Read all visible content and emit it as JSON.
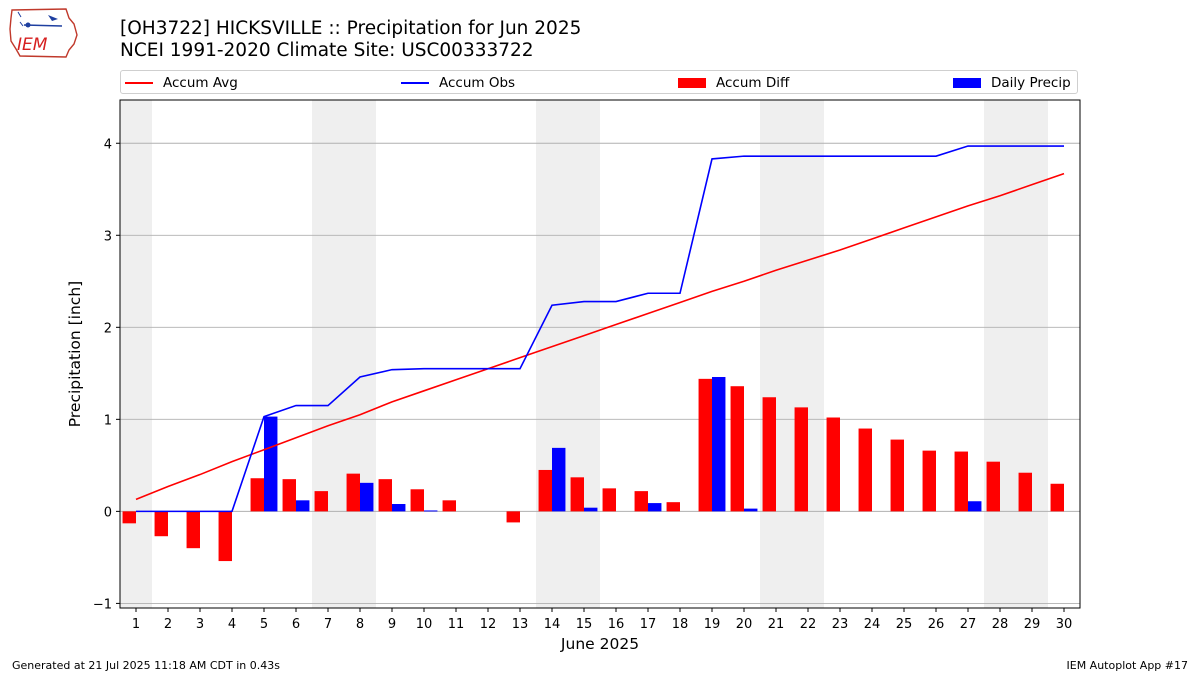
{
  "header": {
    "title_line1": "[OH3722] HICKSVILLE :: Precipitation for Jun 2025",
    "title_line2": "NCEI 1991-2020 Climate Site: USC00333722",
    "logo_text": "IEM"
  },
  "legend": {
    "items": [
      {
        "label": "Accum Avg",
        "kind": "line",
        "color": "#ff0000"
      },
      {
        "label": "Accum Obs",
        "kind": "line",
        "color": "#0000ff"
      },
      {
        "label": "Accum Diff",
        "kind": "bar",
        "color": "#ff0000"
      },
      {
        "label": "Daily Precip",
        "kind": "bar",
        "color": "#0000ff"
      }
    ]
  },
  "footer": {
    "left": "Generated at 21 Jul 2025 11:18 AM CDT in 0.43s",
    "right": "IEM Autoplot App #17"
  },
  "chart_data": {
    "type": "bar",
    "xlabel": "June 2025",
    "ylabel": "Precipitation [inch]",
    "ylim": [
      -1.05,
      4.47
    ],
    "yticks": [
      -1,
      0,
      1,
      2,
      3,
      4
    ],
    "grid": "horizontal",
    "weekend_shading": [
      1,
      7,
      8,
      14,
      15,
      21,
      22,
      28,
      29
    ],
    "days": [
      1,
      2,
      3,
      4,
      5,
      6,
      7,
      8,
      9,
      10,
      11,
      12,
      13,
      14,
      15,
      16,
      17,
      18,
      19,
      20,
      21,
      22,
      23,
      24,
      25,
      26,
      27,
      28,
      29,
      30
    ],
    "series": [
      {
        "name": "Accum Avg",
        "kind": "line",
        "color": "#ff0000",
        "values": [
          0.13,
          0.27,
          0.4,
          0.54,
          0.67,
          0.8,
          0.93,
          1.05,
          1.19,
          1.31,
          1.43,
          1.55,
          1.67,
          1.79,
          1.91,
          2.03,
          2.15,
          2.27,
          2.39,
          2.5,
          2.62,
          2.73,
          2.84,
          2.96,
          3.08,
          3.2,
          3.32,
          3.43,
          3.55,
          3.67
        ]
      },
      {
        "name": "Accum Obs",
        "kind": "line",
        "color": "#0000ff",
        "values": [
          0.0,
          0.0,
          0.0,
          0.0,
          1.03,
          1.15,
          1.15,
          1.46,
          1.54,
          1.55,
          1.55,
          1.55,
          1.55,
          2.24,
          2.28,
          2.28,
          2.37,
          2.37,
          3.83,
          3.86,
          3.86,
          3.86,
          3.86,
          3.86,
          3.86,
          3.86,
          3.97,
          3.97,
          3.97,
          3.97
        ]
      },
      {
        "name": "Accum Diff",
        "kind": "bar",
        "color": "#ff0000",
        "values": [
          -0.13,
          -0.27,
          -0.4,
          -0.54,
          0.36,
          0.35,
          0.22,
          0.41,
          0.35,
          0.24,
          0.12,
          0.0,
          -0.12,
          0.45,
          0.37,
          0.25,
          0.22,
          0.1,
          1.44,
          1.36,
          1.24,
          1.13,
          1.02,
          0.9,
          0.78,
          0.66,
          0.65,
          0.54,
          0.42,
          0.3
        ]
      },
      {
        "name": "Daily Precip",
        "kind": "bar",
        "color": "#0000ff",
        "values": [
          0,
          0,
          0,
          0,
          1.03,
          0.12,
          0,
          0.31,
          0.08,
          0.01,
          0,
          0,
          0,
          0.69,
          0.04,
          0,
          0.09,
          0,
          1.46,
          0.03,
          0,
          0,
          0,
          0,
          0,
          0,
          0.11,
          0,
          0,
          0
        ]
      }
    ]
  }
}
